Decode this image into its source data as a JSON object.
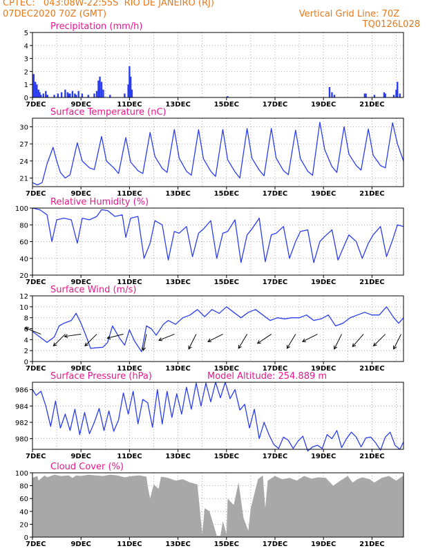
{
  "header": {
    "line1": "CPTEC:   043:08W-22:55S  RIO DE JANEIRO (RJ)",
    "line2": "07DEC2020 70Z (GMT)",
    "grid_note": "Vertical Grid Line: 70Z",
    "code": "TQ0126L028"
  },
  "colors": {
    "header": "#e8781a",
    "title": "#e8188c",
    "series": "#2a3cf0",
    "cloud": "#a8a8a8",
    "grid": "#9a9a9a"
  },
  "chart_data": [
    {
      "type": "bar",
      "title": "Precipitation (mm/h)",
      "ylim": [
        0,
        5
      ],
      "yticks": [
        0,
        1,
        2,
        3,
        4,
        5
      ],
      "xticks": [
        "7DEC",
        "9DEC",
        "11DEC",
        "13DEC",
        "15DEC",
        "17DEC",
        "19DEC",
        "21DEC"
      ],
      "x_days_range": [
        0,
        15.3
      ],
      "x": [
        0.05,
        0.12,
        0.18,
        0.25,
        0.3,
        0.35,
        0.45,
        0.55,
        0.62,
        0.9,
        1.05,
        1.2,
        1.35,
        1.45,
        1.5,
        1.55,
        1.65,
        1.75,
        1.8,
        1.9,
        2.05,
        2.3,
        2.55,
        2.65,
        2.72,
        2.78,
        2.85,
        2.92,
        3.2,
        3.8,
        3.95,
        4.0,
        4.05,
        4.1,
        8.05,
        12.25,
        12.35,
        12.45,
        13.7,
        13.75,
        14.1,
        14.5,
        14.55,
        14.9,
        15.0,
        15.05,
        15.15
      ],
      "values": [
        1.8,
        1.2,
        1.0,
        0.6,
        0.4,
        0.2,
        0.3,
        0.5,
        0.2,
        0.2,
        0.3,
        0.4,
        0.6,
        0.4,
        0.3,
        0.3,
        0.5,
        0.3,
        0.2,
        0.5,
        0.3,
        0.2,
        0.3,
        0.5,
        1.3,
        1.6,
        1.2,
        0.6,
        0.2,
        0.3,
        1.0,
        2.4,
        1.6,
        0.6,
        0.1,
        0.8,
        0.4,
        0.2,
        0.3,
        0.3,
        0.2,
        0.4,
        0.3,
        0.2,
        0.6,
        1.2,
        0.3
      ]
    },
    {
      "type": "line",
      "title": "Surface Temperature (nC)",
      "ylim": [
        19.5,
        31.5
      ],
      "yticks": [
        21,
        24,
        27,
        30
      ],
      "xticks": [
        "7DEC",
        "9DEC",
        "11DEC",
        "13DEC",
        "15DEC",
        "17DEC",
        "19DEC",
        "21DEC"
      ],
      "x_days_range": [
        0,
        15.3
      ],
      "series": [
        {
          "x": [
            0,
            0.2,
            0.4,
            0.6,
            0.85,
            1.0,
            1.15,
            1.35,
            1.55,
            1.85,
            2.05,
            2.35,
            2.55,
            2.85,
            3.05,
            3.35,
            3.55,
            3.85,
            4.05,
            4.35,
            4.55,
            4.85,
            5.05,
            5.35,
            5.55,
            5.85,
            6.05,
            6.35,
            6.55,
            6.85,
            7.05,
            7.35,
            7.55,
            7.85,
            8.05,
            8.35,
            8.55,
            8.85,
            9.05,
            9.35,
            9.55,
            9.85,
            10.05,
            10.35,
            10.55,
            10.85,
            11.05,
            11.35,
            11.55,
            11.85,
            12.05,
            12.35,
            12.55,
            12.85,
            13.05,
            13.35,
            13.55,
            13.85,
            14.05,
            14.35,
            14.55,
            14.85,
            15.05,
            15.3
          ],
          "y": [
            20.2,
            19.8,
            20.2,
            23.5,
            26.4,
            24.0,
            22.0,
            21.0,
            21.6,
            27.2,
            24.0,
            22.8,
            22.5,
            28.3,
            24.0,
            22.8,
            21.8,
            28.1,
            23.8,
            22.3,
            21.8,
            29.0,
            24.8,
            22.7,
            22.0,
            29.5,
            24.5,
            22.2,
            21.5,
            29.5,
            24.4,
            22.2,
            21.3,
            29.5,
            24.2,
            22.1,
            21.0,
            29.7,
            24.5,
            22.4,
            21.4,
            29.7,
            24.5,
            22.3,
            21.6,
            29.4,
            24.4,
            22.2,
            21.5,
            30.8,
            26.0,
            23.0,
            22.0,
            30.0,
            25.2,
            23.2,
            22.4,
            29.6,
            25.0,
            23.2,
            22.8,
            30.7,
            27.0,
            24.0
          ]
        }
      ]
    },
    {
      "type": "line",
      "title": "Relative Humidity (%)",
      "ylim": [
        20,
        100
      ],
      "yticks": [
        20,
        40,
        60,
        80,
        100
      ],
      "xticks": [
        "7DEC",
        "9DEC",
        "11DEC",
        "13DEC",
        "15DEC",
        "17DEC",
        "19DEC",
        "21DEC"
      ],
      "x_days_range": [
        0,
        15.3
      ],
      "series": [
        {
          "x": [
            0,
            0.3,
            0.6,
            0.8,
            1.0,
            1.3,
            1.6,
            1.85,
            2.05,
            2.35,
            2.65,
            2.85,
            3.1,
            3.4,
            3.7,
            3.85,
            4.05,
            4.35,
            4.6,
            4.85,
            5.05,
            5.35,
            5.6,
            5.85,
            6.05,
            6.35,
            6.6,
            6.85,
            7.05,
            7.35,
            7.6,
            7.85,
            8.05,
            8.35,
            8.6,
            8.85,
            9.05,
            9.35,
            9.6,
            9.85,
            10.05,
            10.35,
            10.6,
            10.85,
            11.05,
            11.35,
            11.6,
            11.85,
            12.05,
            12.35,
            12.6,
            12.85,
            13.05,
            13.35,
            13.6,
            13.85,
            14.05,
            14.35,
            14.6,
            14.85,
            15.05,
            15.3
          ],
          "y": [
            100,
            98,
            92,
            60,
            86,
            88,
            86,
            58,
            88,
            86,
            90,
            98,
            97,
            90,
            92,
            65,
            88,
            90,
            40,
            58,
            85,
            80,
            38,
            72,
            70,
            78,
            42,
            70,
            75,
            85,
            40,
            70,
            72,
            86,
            35,
            68,
            75,
            88,
            36,
            68,
            70,
            78,
            40,
            60,
            72,
            74,
            35,
            60,
            66,
            74,
            38,
            55,
            68,
            60,
            40,
            58,
            68,
            78,
            42,
            62,
            80,
            78
          ]
        }
      ]
    },
    {
      "type": "line",
      "title": "Surface Wind (m/s)",
      "ylim": [
        0,
        12
      ],
      "yticks": [
        0,
        2,
        4,
        6,
        8,
        10,
        12
      ],
      "xticks": [
        "7DEC",
        "9DEC",
        "11DEC",
        "13DEC",
        "15DEC",
        "17DEC",
        "19DEC",
        "21DEC"
      ],
      "x_days_range": [
        0,
        15.3
      ],
      "series": [
        {
          "x": [
            0,
            0.3,
            0.6,
            0.9,
            1.1,
            1.3,
            1.6,
            1.8,
            2.0,
            2.2,
            2.4,
            2.6,
            2.9,
            3.1,
            3.3,
            3.6,
            3.8,
            4.0,
            4.2,
            4.5,
            4.7,
            4.9,
            5.1,
            5.4,
            5.6,
            5.9,
            6.2,
            6.5,
            6.8,
            7.1,
            7.4,
            7.7,
            8.0,
            8.3,
            8.6,
            8.9,
            9.2,
            9.5,
            9.8,
            10.1,
            10.4,
            10.7,
            11.0,
            11.3,
            11.6,
            11.9,
            12.2,
            12.5,
            12.8,
            13.1,
            13.4,
            13.7,
            14.0,
            14.3,
            14.6,
            14.9,
            15.1,
            15.3
          ],
          "y": [
            5.5,
            4.5,
            3.5,
            4.5,
            6.5,
            7.0,
            7.5,
            8.8,
            7.0,
            4.8,
            2.4,
            2.5,
            2.6,
            3.5,
            6.5,
            4.2,
            3.0,
            5.8,
            3.8,
            1.8,
            6.5,
            6.0,
            4.8,
            6.8,
            7.5,
            6.8,
            8.0,
            8.5,
            9.5,
            8.2,
            9.5,
            8.8,
            10.0,
            9.0,
            8.0,
            9.0,
            9.5,
            8.5,
            7.5,
            8.0,
            7.8,
            8.0,
            8.0,
            8.5,
            7.5,
            7.8,
            8.5,
            6.5,
            7.0,
            8.0,
            8.5,
            9.0,
            8.5,
            8.5,
            10.0,
            8.0,
            7.0,
            8.0
          ]
        }
      ],
      "wind_arrows_x": [
        0.35,
        1.35,
        2.0,
        2.65,
        3.75,
        4.7,
        5.85,
        6.75,
        7.85,
        8.85,
        9.85,
        10.85,
        11.75,
        12.75,
        13.65,
        14.55,
        15.2
      ],
      "wind_arrows_dir": [
        [
          -1,
          0.4
        ],
        [
          -1,
          -1
        ],
        [
          -0.7,
          -0.1
        ],
        [
          -0.6,
          -0.6
        ],
        [
          -0.8,
          -0.2
        ],
        [
          -0.2,
          -1
        ],
        [
          -1,
          -0.4
        ],
        [
          -0.5,
          -1
        ],
        [
          -1,
          -0.5
        ],
        [
          -0.6,
          -1
        ],
        [
          -0.9,
          -0.6
        ],
        [
          -0.6,
          -1
        ],
        [
          -1,
          -0.5
        ],
        [
          -0.5,
          -1
        ],
        [
          -0.7,
          -0.8
        ],
        [
          -0.6,
          -0.6
        ],
        [
          -0.5,
          -1
        ]
      ]
    },
    {
      "type": "line",
      "title": "Surface Pressure (hPa)",
      "annotation": "Model Altitude: 254.889 m",
      "ylim": [
        978.7,
        986.9
      ],
      "yticks": [
        980,
        982,
        984,
        986
      ],
      "xticks": [
        "7DEC",
        "9DEC",
        "11DEC",
        "13DEC",
        "15DEC",
        "17DEC",
        "19DEC",
        "21DEC"
      ],
      "x_days_range": [
        0,
        15.3
      ],
      "series": [
        {
          "x": [
            0,
            0.15,
            0.35,
            0.55,
            0.75,
            0.95,
            1.15,
            1.35,
            1.55,
            1.75,
            1.95,
            2.15,
            2.35,
            2.55,
            2.75,
            2.95,
            3.15,
            3.35,
            3.55,
            3.75,
            3.95,
            4.15,
            4.35,
            4.55,
            4.75,
            4.95,
            5.15,
            5.35,
            5.55,
            5.75,
            5.95,
            6.15,
            6.35,
            6.55,
            6.75,
            6.95,
            7.15,
            7.35,
            7.55,
            7.75,
            7.95,
            8.15,
            8.35,
            8.55,
            8.75,
            8.95,
            9.15,
            9.35,
            9.55,
            9.75,
            9.95,
            10.15,
            10.35,
            10.55,
            10.75,
            10.95,
            11.15,
            11.35,
            11.55,
            11.75,
            11.95,
            12.15,
            12.35,
            12.55,
            12.75,
            12.95,
            13.15,
            13.35,
            13.55,
            13.75,
            13.95,
            14.15,
            14.35,
            14.55,
            14.75,
            14.95,
            15.15,
            15.3
          ],
          "y": [
            986.0,
            985.3,
            985.8,
            984.0,
            981.5,
            984.6,
            981.3,
            983.0,
            981.0,
            983.6,
            980.5,
            983.2,
            980.6,
            982.0,
            983.7,
            981.0,
            983.4,
            980.9,
            982.3,
            985.6,
            983.0,
            985.8,
            981.8,
            984.8,
            984.4,
            981.4,
            986.0,
            981.8,
            985.8,
            982.6,
            985.5,
            983.0,
            986.3,
            983.6,
            986.8,
            984.0,
            986.8,
            984.5,
            986.9,
            985.0,
            986.9,
            984.9,
            986.0,
            983.5,
            984.2,
            981.3,
            983.6,
            980.0,
            982.0,
            980.5,
            979.3,
            978.8,
            980.2,
            979.8,
            978.8,
            979.7,
            980.3,
            978.5,
            979.0,
            979.2,
            978.8,
            980.5,
            980.0,
            981.0,
            978.9,
            980.0,
            980.8,
            980.2,
            979.0,
            980.1,
            980.2,
            979.5,
            978.6,
            980.2,
            980.8,
            979.2,
            978.7,
            979.6
          ]
        }
      ]
    },
    {
      "type": "area",
      "title": "Cloud Cover (%)",
      "ylim": [
        0,
        100
      ],
      "yticks": [
        0,
        20,
        40,
        60,
        80,
        100
      ],
      "xticks": [
        "7DEC",
        "9DEC",
        "11DEC",
        "13DEC",
        "15DEC",
        "17DEC",
        "19DEC",
        "21DEC"
      ],
      "x_days_range": [
        0,
        15.3
      ],
      "series": [
        {
          "x": [
            0,
            0.2,
            0.25,
            0.5,
            0.6,
            0.9,
            1.2,
            1.5,
            1.65,
            1.8,
            2.0,
            2.3,
            2.6,
            2.9,
            3.2,
            3.5,
            3.8,
            4.1,
            4.4,
            4.7,
            4.75,
            4.85,
            5.0,
            5.2,
            5.3,
            5.6,
            5.9,
            6.2,
            6.5,
            6.8,
            7.0,
            7.1,
            7.3,
            7.5,
            7.6,
            7.75,
            7.85,
            8.0,
            8.05,
            8.3,
            8.5,
            8.7,
            8.9,
            9.0,
            9.3,
            9.5,
            9.6,
            9.7,
            10.0,
            10.3,
            10.6,
            10.9,
            11.2,
            11.5,
            11.8,
            12.1,
            12.4,
            12.7,
            13.0,
            13.2,
            13.4,
            13.6,
            13.9,
            14.1,
            14.4,
            14.7,
            15.0,
            15.3
          ],
          "y": [
            92,
            95,
            88,
            96,
            93,
            97,
            95,
            96,
            92,
            96,
            95,
            97,
            96,
            95,
            97,
            96,
            93,
            95,
            96,
            94,
            80,
            60,
            82,
            75,
            94,
            92,
            88,
            90,
            85,
            82,
            5,
            45,
            40,
            15,
            2,
            2,
            25,
            5,
            60,
            50,
            85,
            30,
            10,
            45,
            90,
            96,
            45,
            88,
            95,
            90,
            92,
            88,
            95,
            91,
            93,
            92,
            80,
            88,
            95,
            85,
            90,
            93,
            90,
            85,
            92,
            95,
            88,
            96
          ]
        }
      ]
    }
  ]
}
